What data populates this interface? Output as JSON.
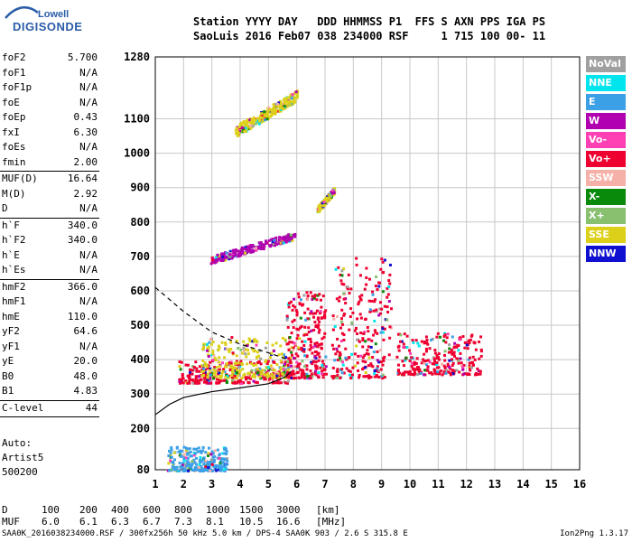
{
  "logo": {
    "line1": "Lowell",
    "line2": "DIGISONDE"
  },
  "header": {
    "line1": "Station YYYY DAY   DDD HHMMSS P1  FFS S AXN PPS IGA PS",
    "line2": "SaoLuis 2016 Feb07 038 234000 RSF     1 715 100 00- 11"
  },
  "params": [
    {
      "label": "foF2",
      "value": "5.700"
    },
    {
      "label": "foF1",
      "value": "N/A"
    },
    {
      "label": "foF1p",
      "value": "N/A"
    },
    {
      "label": "foE",
      "value": "N/A"
    },
    {
      "label": "foEp",
      "value": "0.43"
    },
    {
      "label": "fxI",
      "value": "6.30"
    },
    {
      "label": "foEs",
      "value": "N/A"
    },
    {
      "label": "fmin",
      "value": "2.00"
    },
    {
      "sep": true
    },
    {
      "label": "MUF(D)",
      "value": "16.64"
    },
    {
      "label": "M(D)",
      "value": "2.92"
    },
    {
      "label": "D",
      "value": "N/A"
    },
    {
      "sep": true
    },
    {
      "label": "h`F",
      "value": "340.0"
    },
    {
      "label": "h`F2",
      "value": "340.0"
    },
    {
      "label": "h`E",
      "value": "N/A"
    },
    {
      "label": "h`Es",
      "value": "N/A"
    },
    {
      "sep": true
    },
    {
      "label": "hmF2",
      "value": "366.0"
    },
    {
      "label": "hmF1",
      "value": "N/A"
    },
    {
      "label": "hmE",
      "value": "110.0"
    },
    {
      "label": "yF2",
      "value": "64.6"
    },
    {
      "label": "yF1",
      "value": "N/A"
    },
    {
      "label": "yE",
      "value": "20.0"
    },
    {
      "label": "B0",
      "value": "48.0"
    },
    {
      "label": "B1",
      "value": "4.83"
    },
    {
      "sep": true
    },
    {
      "label": "C-level",
      "value": "44"
    },
    {
      "sep": true
    }
  ],
  "autoscale": {
    "line1": "Auto:",
    "line2": "Artist5",
    "line3": "500200"
  },
  "legend": [
    {
      "label": "NoVal",
      "color": "#a0a0a0"
    },
    {
      "label": "NNE",
      "color": "#00e5ee"
    },
    {
      "label": "E",
      "color": "#3ca0e6"
    },
    {
      "label": "W",
      "color": "#b000b0"
    },
    {
      "label": "Vo-",
      "color": "#ff40b4"
    },
    {
      "label": "Vo+",
      "color": "#ee0030"
    },
    {
      "label": "SSW",
      "color": "#f5b0a8"
    },
    {
      "label": "X-",
      "color": "#0a8a0a"
    },
    {
      "label": "X+",
      "color": "#88c070"
    },
    {
      "label": "SSE",
      "color": "#dcd01a"
    },
    {
      "label": "NNW",
      "color": "#1010d0"
    }
  ],
  "footer": {
    "d_label": "D",
    "d_values": [
      "100",
      "200",
      "400",
      "600",
      "800",
      "1000",
      "1500",
      "3000",
      "[km]"
    ],
    "muf_label": "MUF",
    "muf_values": [
      "6.0",
      "6.1",
      "6.3",
      "6.7",
      "7.3",
      "8.1",
      "10.5",
      "16.6",
      "[MHz]"
    ],
    "fileinfo": "SAA0K_2016038234000.RSF / 300fx256h 50 kHz 5.0 km / DPS-4 SAA0K 903 / 2.6 S 315.8 E",
    "version": "Ion2Png 1.3.17"
  },
  "chart_data": {
    "type": "scatter",
    "title": "",
    "xlabel": "",
    "ylabel": "",
    "xlim": [
      1,
      16
    ],
    "ylim": [
      80,
      1280
    ],
    "x_ticks": [
      1,
      2,
      3,
      4,
      5,
      6,
      7,
      8,
      9,
      10,
      11,
      12,
      13,
      14,
      15,
      16
    ],
    "y_ticks": [
      80,
      200,
      300,
      400,
      500,
      600,
      700,
      800,
      900,
      1000,
      1100,
      1280
    ],
    "grid": true,
    "legend_position": "right",
    "traces": [
      {
        "x_range": [
          1.8,
          5.8
        ],
        "y_range": [
          335,
          400
        ],
        "color": "#ee0030"
      },
      {
        "x_range": [
          2.6,
          5.8
        ],
        "y_range": [
          350,
          470
        ],
        "color": "#dcd01a"
      },
      {
        "x_range": [
          5.6,
          7.0
        ],
        "y_range": [
          350,
          600
        ],
        "color": "#ee0030"
      },
      {
        "x_range": [
          7.2,
          9.3
        ],
        "y_range": [
          350,
          700
        ],
        "color": "#ee0030"
      },
      {
        "x_range": [
          9.5,
          12.5
        ],
        "y_range": [
          360,
          480
        ],
        "color": "#ee0030"
      },
      {
        "x_range": [
          2.9,
          5.9
        ],
        "y_range": [
          680,
          770
        ],
        "color": "#b000b0"
      },
      {
        "x_range": [
          3.8,
          6.0
        ],
        "y_range": [
          1050,
          1180
        ],
        "color": "#dcd01a"
      },
      {
        "x_range": [
          6.7,
          7.3
        ],
        "y_range": [
          830,
          900
        ],
        "color": "#dcd01a"
      },
      {
        "x_range": [
          1.4,
          3.5
        ],
        "y_range": [
          80,
          150
        ],
        "color": "#3ca0e6"
      }
    ],
    "profile_curve": [
      [
        1.0,
        240
      ],
      [
        1.5,
        270
      ],
      [
        2.0,
        290
      ],
      [
        3.0,
        307
      ],
      [
        4.0,
        318
      ],
      [
        5.0,
        330
      ],
      [
        5.6,
        350
      ],
      [
        5.8,
        366
      ]
    ],
    "profile_dashed": [
      [
        1.0,
        610
      ],
      [
        2.0,
        540
      ],
      [
        3.0,
        480
      ],
      [
        4.0,
        445
      ],
      [
        5.0,
        420
      ],
      [
        5.7,
        400
      ]
    ]
  }
}
